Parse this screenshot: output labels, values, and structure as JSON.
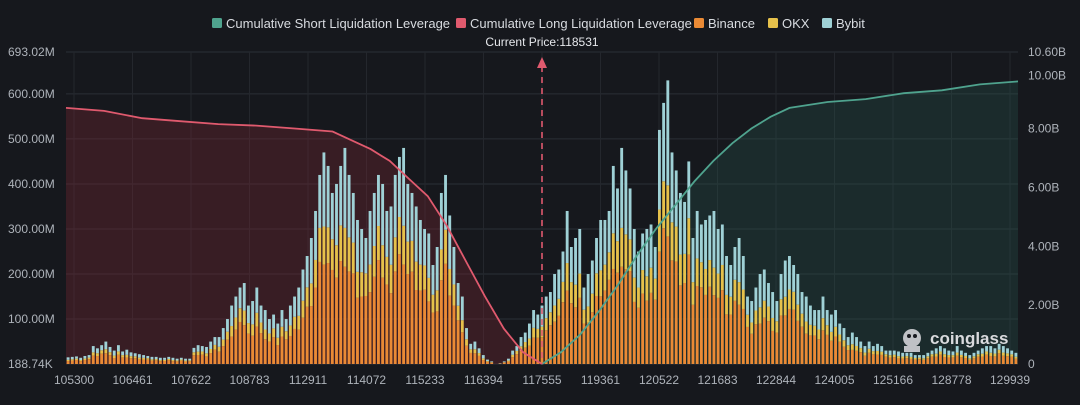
{
  "chart_data": {
    "type": "bar",
    "legend": [
      {
        "name": "Cumulative Short Liquidation Leverage",
        "color": "#4fa38e"
      },
      {
        "name": "Cumulative Long Liquidation Leverage",
        "color": "#e05a6e"
      },
      {
        "name": "Binance",
        "color": "#ea8a35"
      },
      {
        "name": "OKX",
        "color": "#e6c14b"
      },
      {
        "name": "Bybit",
        "color": "#9fd1d6"
      }
    ],
    "legend_position": "top-center",
    "current_price_label": "Current Price:118531",
    "current_price": 118531,
    "x_tick_labels": [
      "105300",
      "106461",
      "107622",
      "108783",
      "112911",
      "114072",
      "115233",
      "116394",
      "117555",
      "119361",
      "120522",
      "121683",
      "122844",
      "124005",
      "125166",
      "128778",
      "129939"
    ],
    "y_left_ticks": [
      "188.74K",
      "100.00M",
      "200.00M",
      "300.00M",
      "400.00M",
      "500.00M",
      "600.00M",
      "693.02M"
    ],
    "y_right_ticks": [
      "0",
      "2.00B",
      "4.00B",
      "6.00B",
      "8.00B",
      "10.00B",
      "10.60B"
    ],
    "y_left_range_millions": [
      0.18874,
      693.02
    ],
    "y_right_range_billions": [
      0,
      10.6
    ],
    "grid": true,
    "bars_millions": {
      "totals": [
        15,
        16,
        17,
        14,
        18,
        20,
        40,
        35,
        42,
        50,
        38,
        30,
        42,
        28,
        32,
        26,
        24,
        22,
        20,
        18,
        16,
        16,
        14,
        14,
        16,
        14,
        12,
        14,
        12,
        12,
        36,
        42,
        40,
        38,
        50,
        60,
        60,
        80,
        100,
        130,
        150,
        170,
        180,
        130,
        140,
        170,
        130,
        120,
        100,
        110,
        90,
        120,
        100,
        130,
        150,
        170,
        210,
        240,
        280,
        340,
        420,
        470,
        440,
        380,
        400,
        440,
        480,
        420,
        380,
        320,
        300,
        280,
        340,
        380,
        420,
        400,
        340,
        350,
        420,
        460,
        480,
        400,
        380,
        350,
        320,
        300,
        290,
        220,
        260,
        380,
        420,
        330,
        260,
        180,
        150,
        80,
        45,
        50,
        35,
        20,
        10,
        6,
        0,
        2,
        6,
        12,
        30,
        40,
        60,
        70,
        90,
        120,
        110,
        130,
        150,
        160,
        200,
        210,
        250,
        340,
        260,
        280,
        300,
        170,
        200,
        230,
        280,
        320,
        320,
        340,
        440,
        390,
        480,
        430,
        390,
        300,
        250,
        290,
        300,
        310,
        260,
        520,
        580,
        630,
        470,
        430,
        380,
        360,
        450,
        280,
        340,
        310,
        320,
        330,
        340,
        300,
        310,
        240,
        220,
        260,
        280,
        240,
        150,
        140,
        170,
        200,
        210,
        180,
        160,
        140,
        200,
        230,
        240,
        220,
        200,
        160,
        150,
        130,
        120,
        120,
        150,
        120,
        110,
        120,
        90,
        80,
        60,
        70,
        60,
        50,
        40,
        50,
        40,
        45,
        40,
        30,
        30,
        30,
        28,
        25,
        25,
        25,
        20,
        20,
        20,
        25,
        30,
        35,
        40,
        35,
        30,
        28,
        40,
        30,
        25,
        20,
        25,
        30,
        35,
        40,
        40,
        35,
        45,
        40,
        35,
        30,
        25
      ],
      "binance_share": 0.5,
      "okx_share": 0.18,
      "bybit_share": 0.32
    },
    "long_cumulative_billions": {
      "x_fraction": [
        0,
        0.04,
        0.08,
        0.12,
        0.16,
        0.2,
        0.24,
        0.28,
        0.3,
        0.32,
        0.34,
        0.36,
        0.38,
        0.4,
        0.42,
        0.44,
        0.46,
        0.48,
        0.5
      ],
      "values": [
        8.7,
        8.6,
        8.35,
        8.25,
        8.15,
        8.1,
        8.0,
        7.9,
        7.6,
        7.3,
        6.9,
        6.3,
        5.7,
        4.7,
        3.5,
        2.3,
        1.2,
        0.4,
        0.0
      ]
    },
    "short_cumulative_billions": {
      "x_fraction": [
        0.5,
        0.52,
        0.54,
        0.56,
        0.58,
        0.6,
        0.62,
        0.64,
        0.66,
        0.68,
        0.7,
        0.72,
        0.74,
        0.76,
        0.8,
        0.84,
        0.88,
        0.92,
        0.96,
        1.0
      ],
      "values": [
        0.0,
        0.4,
        1.0,
        1.8,
        2.7,
        3.7,
        4.6,
        5.4,
        6.2,
        6.9,
        7.5,
        8.0,
        8.4,
        8.7,
        8.9,
        9.0,
        9.2,
        9.3,
        9.5,
        9.6
      ]
    }
  },
  "watermark": {
    "text": "coinglass"
  }
}
